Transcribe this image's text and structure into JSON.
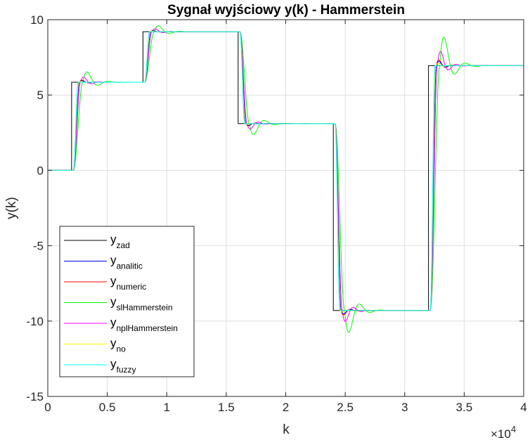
{
  "chart_data": {
    "type": "line",
    "title": "Sygnał wyjściowy y(k) - Hammerstein",
    "xlabel": "k",
    "ylabel": "y(k)",
    "x_exponent_label": "×10",
    "x_exponent_power": "4",
    "xlim": [
      0,
      40000
    ],
    "ylim": [
      -15,
      10
    ],
    "x_tick_values": [
      0,
      5000,
      10000,
      15000,
      20000,
      25000,
      30000,
      35000,
      40000
    ],
    "x_tick_labels": [
      "0",
      "0.5",
      "1",
      "1.5",
      "2",
      "2.5",
      "3",
      "3.5",
      "4"
    ],
    "y_tick_values": [
      -15,
      -10,
      -5,
      0,
      5,
      10
    ],
    "y_tick_labels": [
      "-15",
      "-10",
      "-5",
      "0",
      "5",
      "10"
    ],
    "grid": true,
    "legend_position": "bottom-left",
    "steps": [
      {
        "k": 0,
        "value": 0
      },
      {
        "k": 2000,
        "value": 5.85
      },
      {
        "k": 8000,
        "value": 9.2
      },
      {
        "k": 16000,
        "value": 3.1
      },
      {
        "k": 24000,
        "value": -9.3
      },
      {
        "k": 32000,
        "value": 6.95
      }
    ],
    "series": [
      {
        "name_main": "y",
        "name_sub": "zad",
        "color": "#000000",
        "kind": "setpoint",
        "delay": 0,
        "time_constant": 0,
        "overshoot": 0
      },
      {
        "name_main": "y",
        "name_sub": "analitic",
        "color": "#0000ff",
        "kind": "response",
        "delay": 150,
        "time_constant": 500,
        "overshoot": 0.03
      },
      {
        "name_main": "y",
        "name_sub": "numeric",
        "color": "#ff0000",
        "kind": "response",
        "delay": 150,
        "time_constant": 500,
        "overshoot": 0.04
      },
      {
        "name_main": "y",
        "name_sub": "slHammerstein",
        "color": "#00ff00",
        "kind": "response",
        "delay": 150,
        "time_constant": 800,
        "overshoot": 0.2
      },
      {
        "name_main": "y",
        "name_sub": "nplHammerstein",
        "color": "#ff00ff",
        "kind": "response",
        "delay": 150,
        "time_constant": 600,
        "overshoot": 0.1
      },
      {
        "name_main": "y",
        "name_sub": "no",
        "color": "#ffff00",
        "kind": "response",
        "delay": 150,
        "time_constant": 450,
        "overshoot": 0.015
      },
      {
        "name_main": "y",
        "name_sub": "fuzzy",
        "color": "#00ffff",
        "kind": "response",
        "delay": 150,
        "time_constant": 400,
        "overshoot": 0.0
      }
    ]
  }
}
